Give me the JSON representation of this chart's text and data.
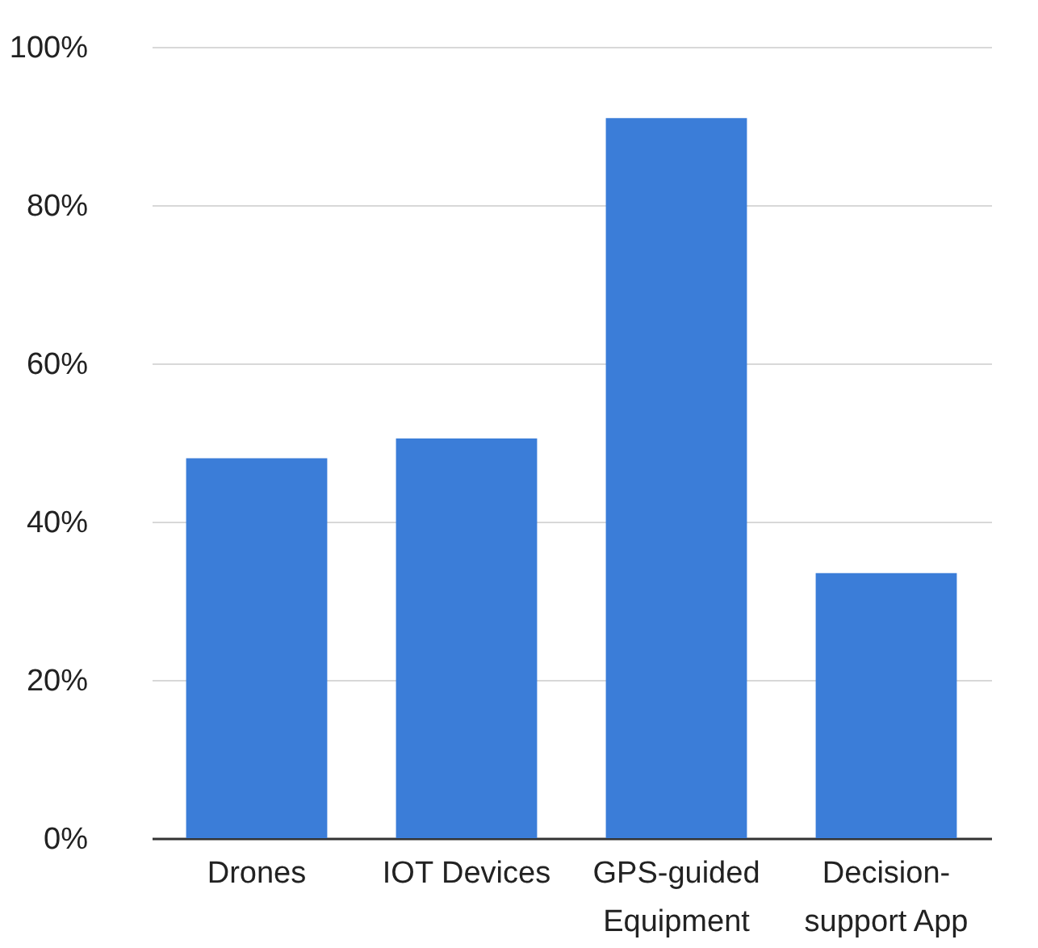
{
  "chart_data": {
    "type": "bar",
    "categories": [
      "Drones",
      "IOT Devices",
      "GPS-guided Equipment",
      "Decision-support App"
    ],
    "values": [
      48,
      50.5,
      91,
      33.5
    ],
    "color": "#3b7dd8",
    "ylim": [
      0,
      100
    ],
    "yticks": [
      {
        "value": 0,
        "label": "0%"
      },
      {
        "value": 20,
        "label": "20%"
      },
      {
        "value": 40,
        "label": "40%"
      },
      {
        "value": 60,
        "label": "60%"
      },
      {
        "value": 80,
        "label": "80%"
      },
      {
        "value": 100,
        "label": "100%"
      }
    ],
    "grid": "y"
  }
}
